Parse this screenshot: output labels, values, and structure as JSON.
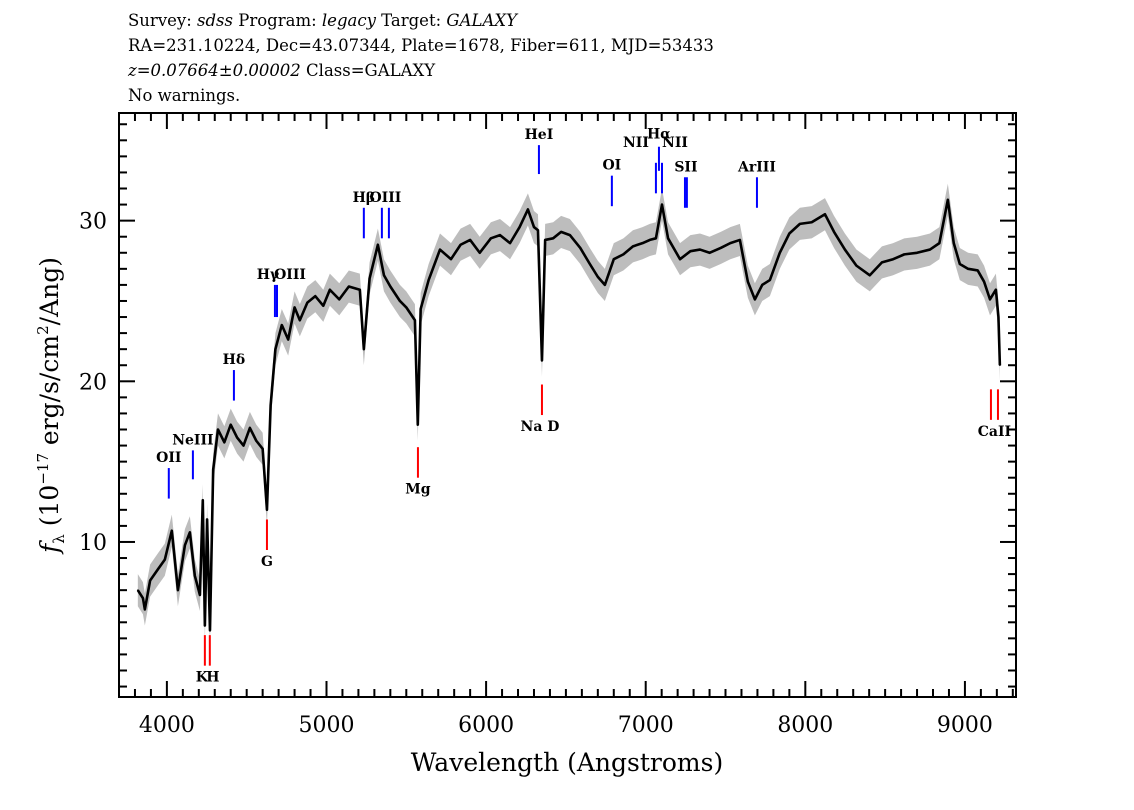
{
  "header": {
    "survey_label": "Survey: ",
    "survey": "sdss",
    "program_label": " Program: ",
    "program": "legacy",
    "target_label": " Target: ",
    "target": "GALAXY",
    "line2": "RA=231.10224, Dec=43.07344, Plate=1678, Fiber=611, MJD=53433",
    "redshift": "z=0.07664±0.00002",
    "class": " Class=GALAXY",
    "warnings": "No warnings."
  },
  "chart_data": {
    "type": "line",
    "xlabel": "Wavelength (Angstroms)",
    "ylabel_parts": [
      "f",
      "λ",
      " (10",
      "−17",
      " erg/s/cm",
      "2",
      "/Ang)"
    ],
    "xlim": [
      3700,
      9320
    ],
    "ylim": [
      0.35,
      36.7
    ],
    "x_ticks": [
      4000,
      5000,
      6000,
      7000,
      8000,
      9000
    ],
    "x_tick_labels": [
      "4000",
      "5000",
      "6000",
      "7000",
      "8000",
      "9000"
    ],
    "y_ticks": [
      10,
      20,
      30
    ],
    "y_tick_labels": [
      "10",
      "20",
      "30"
    ],
    "x_minor_step": 100,
    "y_minor_step": 1,
    "grid": false,
    "colors": {
      "flux": "#000000",
      "error_band": "#bdbdbd",
      "emission": "#0000ff",
      "absorption": "#ff0000"
    },
    "flux_error": 1.0,
    "series": [
      {
        "x": [
          3818,
          3850,
          3862,
          3895,
          3944,
          3987,
          4031,
          4069,
          4113,
          4144,
          4175,
          4207,
          4225,
          4238,
          4252,
          4270,
          4290,
          4320,
          4360,
          4400,
          4440,
          4480,
          4520,
          4560,
          4600,
          4627,
          4650,
          4680,
          4720,
          4760,
          4800,
          4833,
          4880,
          4930,
          4980,
          5021,
          5080,
          5140,
          5209,
          5234,
          5270,
          5322,
          5360,
          5400,
          5460,
          5500,
          5554,
          5572,
          5590,
          5640,
          5711,
          5780,
          5840,
          5900,
          5960,
          6030,
          6087,
          6150,
          6210,
          6262,
          6300,
          6325,
          6350,
          6370,
          6420,
          6470,
          6525,
          6590,
          6650,
          6700,
          6744,
          6800,
          6860,
          6920,
          6980,
          7026,
          7064,
          7102,
          7140,
          7215,
          7280,
          7340,
          7400,
          7470,
          7530,
          7590,
          7640,
          7684,
          7730,
          7778,
          7840,
          7900,
          7966,
          8040,
          8123,
          8180,
          8248,
          8320,
          8404,
          8480,
          8550,
          8620,
          8700,
          8781,
          8840,
          8893,
          8930,
          8968,
          9020,
          9080,
          9120,
          9157,
          9194,
          9210,
          9219
        ],
        "flux": [
          7.0,
          6.5,
          5.8,
          7.6,
          8.3,
          8.9,
          10.7,
          7.0,
          9.8,
          10.6,
          7.9,
          6.7,
          12.6,
          4.8,
          11.4,
          4.5,
          14.5,
          17.0,
          16.2,
          17.3,
          16.5,
          16.0,
          17.1,
          16.3,
          15.8,
          12.0,
          18.5,
          22.0,
          23.5,
          22.6,
          24.6,
          23.8,
          24.9,
          25.3,
          24.7,
          25.7,
          25.1,
          25.9,
          25.7,
          22.0,
          26.4,
          28.5,
          26.6,
          25.9,
          25.0,
          24.6,
          23.8,
          17.3,
          24.5,
          26.3,
          28.2,
          27.6,
          28.5,
          28.8,
          28.0,
          28.9,
          29.1,
          28.6,
          29.6,
          30.7,
          29.6,
          29.4,
          21.3,
          28.8,
          28.9,
          29.3,
          29.1,
          28.3,
          27.3,
          26.5,
          26.0,
          27.6,
          27.9,
          28.4,
          28.6,
          28.8,
          28.9,
          31.0,
          28.9,
          27.6,
          28.1,
          28.2,
          28.0,
          28.3,
          28.6,
          28.8,
          26.2,
          25.1,
          26.0,
          26.3,
          28.0,
          29.2,
          29.8,
          29.9,
          30.4,
          29.3,
          28.2,
          27.2,
          26.6,
          27.4,
          27.6,
          27.9,
          28.0,
          28.2,
          28.6,
          31.3,
          28.6,
          27.3,
          27.0,
          26.9,
          26.2,
          25.1,
          25.7,
          24.0,
          21.0
        ]
      }
    ],
    "line_markers": [
      {
        "label": "OII",
        "wavelengths": [
          4012
        ],
        "type": "emission",
        "y_range": [
          12.7,
          14.6
        ],
        "label_pos": "above"
      },
      {
        "label": "NeIII",
        "wavelengths": [
          4163
        ],
        "type": "emission",
        "y_range": [
          13.9,
          15.7
        ],
        "label_pos": "above"
      },
      {
        "label": "Hδ",
        "wavelengths": [
          4420
        ],
        "type": "emission",
        "y_range": [
          18.8,
          20.7
        ],
        "label_pos": "above"
      },
      {
        "label": "Hγ",
        "wavelengths": [
          4677
        ],
        "type": "emission",
        "y_range": [
          24.0,
          26.0
        ],
        "label_pos": "above"
      },
      {
        "label": "OIII",
        "wavelengths": [
          4690
        ],
        "type": "emission",
        "y_range": [
          24.0,
          26.0
        ],
        "label_pos": "above"
      },
      {
        "label": "Hβ",
        "wavelengths": [
          5234
        ],
        "type": "emission",
        "y_range": [
          28.9,
          30.8
        ],
        "label_pos": "above"
      },
      {
        "label": "OIII",
        "wavelengths": [
          5347,
          5391
        ],
        "type": "emission",
        "y_range": [
          28.9,
          30.8
        ],
        "label_pos": "above"
      },
      {
        "label": "HeI",
        "wavelengths": [
          6331
        ],
        "type": "emission",
        "y_range": [
          32.9,
          34.7
        ],
        "label_pos": "above"
      },
      {
        "label": "OI",
        "wavelengths": [
          6788
        ],
        "type": "emission",
        "y_range": [
          30.9,
          32.8
        ],
        "label_pos": "above"
      },
      {
        "label": "NII",
        "wavelengths": [
          7064
        ],
        "type": "emission",
        "y_range": [
          31.7,
          33.6
        ],
        "label_pos": "above-left"
      },
      {
        "label": "Hα",
        "wavelengths": [
          7083
        ],
        "type": "emission",
        "y_range": [
          33.1,
          34.6
        ],
        "label_pos": "above"
      },
      {
        "label": "NII",
        "wavelengths": [
          7102
        ],
        "type": "emission",
        "y_range": [
          31.7,
          33.6
        ],
        "label_pos": "above-right"
      },
      {
        "label": "SII",
        "wavelengths": [
          7246,
          7258
        ],
        "type": "emission",
        "y_range": [
          30.8,
          32.7
        ],
        "label_pos": "above"
      },
      {
        "label": "ArIII",
        "wavelengths": [
          7697
        ],
        "type": "emission",
        "y_range": [
          30.8,
          32.7
        ],
        "label_pos": "above"
      },
      {
        "label": "K",
        "wavelengths": [
          4238
        ],
        "type": "absorption",
        "y_range": [
          2.3,
          4.2
        ],
        "label_pos": "below"
      },
      {
        "label": "H",
        "wavelengths": [
          4269
        ],
        "type": "absorption",
        "y_range": [
          2.3,
          4.2
        ],
        "label_pos": "below"
      },
      {
        "label": "G",
        "wavelengths": [
          4627
        ],
        "type": "absorption",
        "y_range": [
          9.5,
          11.4
        ],
        "label_pos": "below"
      },
      {
        "label": "Mg",
        "wavelengths": [
          5573
        ],
        "type": "absorption",
        "y_range": [
          14.0,
          15.9
        ],
        "label_pos": "below"
      },
      {
        "label": "Na D",
        "wavelengths": [
          6350
        ],
        "type": "absorption",
        "y_range": [
          17.9,
          19.8
        ],
        "label_pos": "below"
      },
      {
        "label": "CaII",
        "wavelengths": [
          9163,
          9207
        ],
        "type": "absorption",
        "y_range": [
          17.6,
          19.5
        ],
        "label_pos": "below"
      }
    ]
  }
}
